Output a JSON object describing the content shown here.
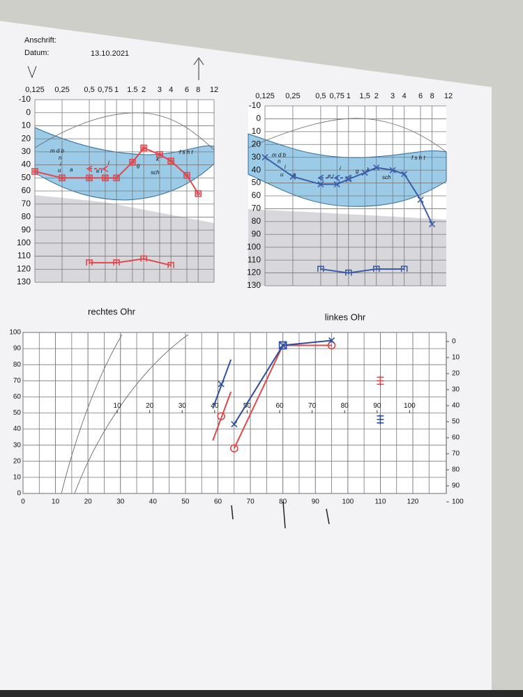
{
  "header": {
    "address_label": "Anschrift:",
    "date_label": "Datum:",
    "date": "13.10.2021"
  },
  "audiograms": [
    {
      "title": "rechtes Ohr",
      "color": "#e0474c",
      "x_scale": "log",
      "y_inverted": true,
      "xlim": [
        0.125,
        12
      ],
      "ylim": [
        -10,
        130
      ],
      "xticks": [
        {
          "value": 0.125,
          "label": "0,125"
        },
        {
          "value": 0.25,
          "label": "0,25"
        },
        {
          "value": 0.5,
          "label": "0,5"
        },
        {
          "value": 0.75,
          "label": "0,75"
        },
        1,
        1.5,
        2,
        3,
        4,
        6,
        8,
        12
      ],
      "yticks": [
        -10,
        0,
        10,
        20,
        30,
        40,
        50,
        60,
        70,
        80,
        90,
        100,
        110,
        120,
        130
      ],
      "phonemes": [
        "m d b",
        "n",
        "i",
        "u",
        "a",
        "e r",
        "i",
        "g",
        "k",
        "sch",
        "f s h t"
      ],
      "series": [
        {
          "marker": "box-circle",
          "color": "#e0474c",
          "x": [
            0.125,
            0.25,
            0.5,
            0.75,
            1,
            1.5,
            2,
            3,
            4,
            6,
            8
          ],
          "values": [
            45,
            50,
            50,
            50,
            50,
            38,
            27,
            32,
            37,
            48,
            62
          ]
        },
        {
          "marker": "bracket",
          "color": "#e0474c",
          "dashed": true,
          "x": [
            0.5,
            0.75
          ],
          "values": [
            43,
            43
          ]
        },
        {
          "marker": "ucl",
          "color": "#e0474c",
          "x": [
            0.5,
            1,
            2,
            4
          ],
          "values": [
            115,
            115,
            112,
            117
          ]
        }
      ]
    },
    {
      "title": "linkes Ohr",
      "color": "#2f4e9c",
      "x_scale": "log",
      "y_inverted": true,
      "xlim": [
        0.125,
        12
      ],
      "ylim": [
        -10,
        130
      ],
      "xticks": [
        {
          "value": 0.125,
          "label": "0,125"
        },
        {
          "value": 0.25,
          "label": "0,25"
        },
        {
          "value": 0.5,
          "label": "0,5"
        },
        {
          "value": 0.75,
          "label": "0,75"
        },
        1,
        {
          "value": 1.5,
          "label": "1,5"
        },
        2,
        3,
        4,
        6,
        8,
        12
      ],
      "yticks": [
        -10,
        0,
        10,
        20,
        30,
        40,
        50,
        60,
        70,
        80,
        90,
        100,
        110,
        120,
        130
      ],
      "phonemes": [
        "m d b",
        "n",
        "i",
        "u",
        "a",
        "e r",
        "i",
        "g",
        "k",
        "sch",
        "f s h t"
      ],
      "series": [
        {
          "marker": "x",
          "color": "#3a5fa8",
          "x": [
            0.125,
            0.25,
            0.5,
            0.75,
            1,
            1.5,
            2,
            3,
            4,
            6,
            8
          ],
          "values": [
            30,
            45,
            51,
            51,
            47,
            42,
            38,
            40,
            43,
            63,
            82
          ]
        },
        {
          "marker": "bracket",
          "color": "#3a5fa8",
          "dashed": true,
          "x": [
            0.5,
            0.75,
            1
          ],
          "values": [
            46,
            46,
            46
          ]
        },
        {
          "marker": "ucl",
          "color": "#3a5fa8",
          "x": [
            0.5,
            1,
            2,
            4
          ],
          "values": [
            117,
            120,
            117,
            117
          ]
        }
      ]
    }
  ],
  "speech": {
    "xlim": [
      0,
      120
    ],
    "xticks": [
      0,
      10,
      20,
      30,
      40,
      50,
      60,
      70,
      80,
      90,
      100,
      110,
      120
    ],
    "ylim": [
      0,
      100
    ],
    "yticks": [
      0,
      10,
      20,
      30,
      40,
      50,
      60,
      70,
      80,
      90,
      100
    ],
    "y2lim": [
      0,
      100
    ],
    "y2ticks": [
      0,
      10,
      20,
      30,
      40,
      50,
      60,
      70,
      80,
      90,
      100
    ],
    "x3lim": [
      -19,
      101
    ],
    "x3ticks": [
      10,
      20,
      30,
      40,
      50,
      60,
      70,
      80,
      90,
      100
    ],
    "series": [
      {
        "color": "#e0474c",
        "markers": [
          "circle",
          "circle",
          "box",
          "circle",
          "equals"
        ],
        "x": [
          61,
          65,
          80,
          95,
          110
        ],
        "values": [
          48,
          28,
          92,
          92,
          70
        ]
      },
      {
        "color": "#2f4e9c",
        "markers": [
          "x",
          "x",
          "box",
          "x",
          "equals"
        ],
        "x": [
          61,
          65,
          80,
          95,
          110
        ],
        "values": [
          68,
          43,
          92,
          95,
          46
        ]
      }
    ]
  }
}
